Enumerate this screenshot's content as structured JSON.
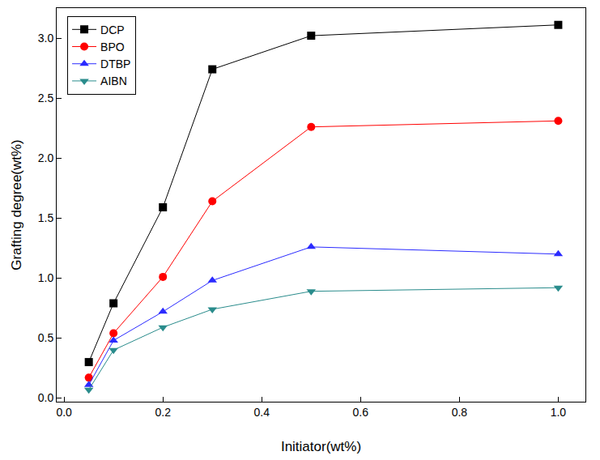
{
  "chart_data": {
    "type": "line",
    "x_label": "Initiator(wt%)",
    "y_label": "Grafting degree(wt%)",
    "x": [
      0.05,
      0.1,
      0.2,
      0.3,
      0.5,
      1.0
    ],
    "series": [
      {
        "name": "DCP",
        "color": "#000000",
        "marker": "square",
        "values": [
          0.3,
          0.79,
          1.59,
          2.74,
          3.02,
          3.11
        ]
      },
      {
        "name": "BPO",
        "color": "#ff0000",
        "marker": "circle",
        "values": [
          0.17,
          0.54,
          1.01,
          1.64,
          2.26,
          2.31
        ]
      },
      {
        "name": "DTBP",
        "color": "#2b2bff",
        "marker": "triangle-up",
        "values": [
          0.11,
          0.48,
          0.72,
          0.98,
          1.26,
          1.2
        ]
      },
      {
        "name": "AIBN",
        "color": "#2a8c8c",
        "marker": "triangle-down",
        "values": [
          0.07,
          0.4,
          0.59,
          0.74,
          0.89,
          0.92
        ]
      }
    ],
    "xlim": [
      -0.015,
      1.055
    ],
    "ylim": [
      -0.03,
      3.25
    ],
    "xticks": [
      {
        "value": 0.0,
        "label": "0.0"
      },
      0.2,
      0.4,
      0.6,
      0.8,
      {
        "value": 1.0,
        "label": "1.0"
      }
    ],
    "yticks": [
      {
        "value": 0.0,
        "label": "0.0"
      },
      0.5,
      {
        "value": 1.0,
        "label": "1.0"
      },
      1.5,
      {
        "value": 2.0,
        "label": "2.0"
      },
      2.5,
      {
        "value": 3.0,
        "label": "3.0"
      }
    ],
    "grid": false,
    "legend": "top-left",
    "line_style": "solid"
  }
}
